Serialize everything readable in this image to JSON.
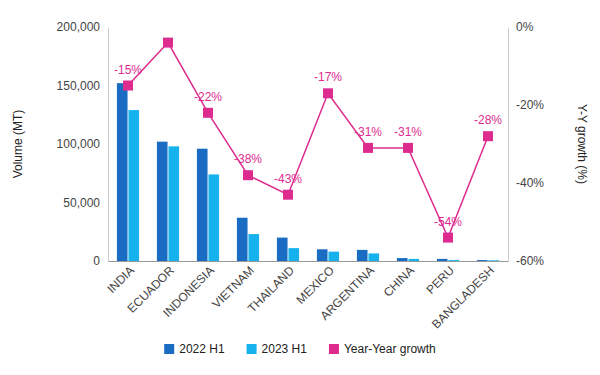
{
  "chart_data": {
    "type": "bar",
    "categories": [
      "INDIA",
      "ECUADOR",
      "INDONESIA",
      "VIETNAM",
      "THAILAND",
      "MEXICO",
      "ARGENTINA",
      "CHINA",
      "PERU",
      "BANGLADESH"
    ],
    "series": [
      {
        "name": "2022 H1",
        "type": "bar",
        "color": "#1a6cc2",
        "values": [
          152000,
          102000,
          96000,
          37000,
          20000,
          10000,
          9500,
          2500,
          1800,
          800
        ]
      },
      {
        "name": "2023 H1",
        "type": "bar",
        "color": "#16b2ee",
        "values": [
          129000,
          98000,
          74000,
          23000,
          11000,
          8000,
          6500,
          1800,
          800,
          600
        ]
      },
      {
        "name": "Year-Year growth",
        "type": "line",
        "axis": "y2",
        "marker": "square",
        "color": "#dd2c8e",
        "values": [
          -15,
          -4,
          -22,
          -38,
          -43,
          -17,
          -31,
          -31,
          -54,
          -28
        ],
        "value_labels": [
          "-15%",
          null,
          "-22%",
          "-38%",
          "-43%",
          "-17%",
          "-31%",
          "-31%",
          "-54%",
          "-28%"
        ]
      }
    ],
    "y_label": "Volume (MT)",
    "y2_label": "Y-Y growth (%)",
    "ylim": [
      0,
      200000
    ],
    "yticks": [
      0,
      {
        "value": 50000,
        "label": "50,000"
      },
      {
        "value": 100000,
        "label": "100,000"
      },
      {
        "value": 150000,
        "label": "150,000"
      },
      {
        "value": 200000,
        "label": "200,000"
      }
    ],
    "y2lim": [
      -60,
      0
    ],
    "y2ticks": [
      {
        "value": -60,
        "label": "-60%"
      },
      {
        "value": -40,
        "label": "-40%"
      },
      {
        "value": -20,
        "label": "-20%"
      },
      {
        "value": 0,
        "label": "0%"
      }
    ],
    "grid": false,
    "legend": "bottom",
    "data_labels": true
  }
}
